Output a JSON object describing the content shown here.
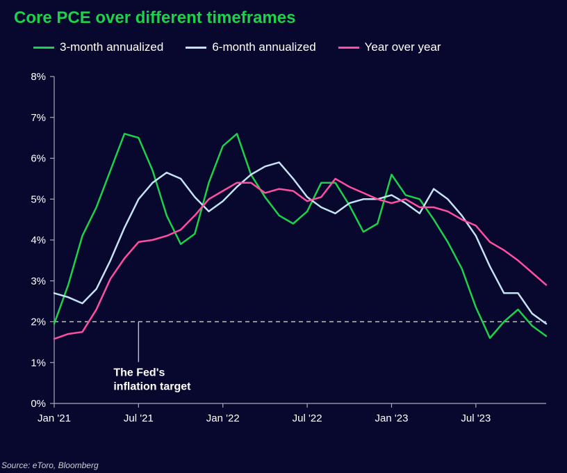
{
  "title": "Core PCE over different timeframes",
  "source": "Source: eToro, Bloomberg",
  "annotation": {
    "lines": [
      "The Fed's",
      "inflation target"
    ],
    "x_index": 6,
    "y_value": 2
  },
  "chart": {
    "type": "line",
    "background_color": "#08082f",
    "title_color": "#1bd24a",
    "title_fontsize": 24,
    "axis_color": "#a8a8b8",
    "text_color": "#ffffff",
    "label_fontsize": 15,
    "tick_fontsize": 15,
    "ylim": [
      0,
      8
    ],
    "ytick_step": 1,
    "y_suffix": "%",
    "x_categories": [
      "Jan '21",
      "Feb '21",
      "Mar '21",
      "Apr '21",
      "May '21",
      "Jun '21",
      "Jul '21",
      "Aug '21",
      "Sep '21",
      "Oct '21",
      "Nov '21",
      "Dec '21",
      "Jan '22",
      "Feb '22",
      "Mar '22",
      "Apr '22",
      "May '22",
      "Jun '22",
      "Jul '22",
      "Aug '22",
      "Sep '22",
      "Oct '22",
      "Nov '22",
      "Dec '22",
      "Jan '23",
      "Feb '23",
      "Mar '23",
      "Apr '23",
      "May '23",
      "Jun '23",
      "Jul '23",
      "Aug '23",
      "Sep '23",
      "Oct '23",
      "Nov '23",
      "Dec '23"
    ],
    "x_tick_indices": [
      0,
      6,
      12,
      18,
      24,
      30
    ],
    "reference_line": {
      "y": 2,
      "color": "#c2c2c9",
      "dash": "6,5",
      "width": 1.4
    },
    "legend": {
      "position": "top-left",
      "fontsize": 17
    },
    "series": [
      {
        "name": "3-month annualized",
        "color": "#1bd24a",
        "line_width": 2.5,
        "values": [
          1.95,
          2.9,
          4.1,
          4.8,
          5.7,
          6.6,
          6.5,
          5.7,
          4.6,
          3.9,
          4.15,
          5.4,
          6.3,
          6.6,
          5.6,
          5.05,
          4.6,
          4.4,
          4.7,
          5.4,
          5.4,
          4.85,
          4.2,
          4.4,
          5.6,
          5.1,
          5.0,
          4.5,
          3.95,
          3.3,
          2.35,
          1.6,
          2.0,
          2.3,
          1.9,
          1.65
        ]
      },
      {
        "name": "6-month annualized",
        "color": "#c4e3f3",
        "line_width": 2.5,
        "values": [
          2.7,
          2.6,
          2.45,
          2.8,
          3.5,
          4.3,
          5.0,
          5.4,
          5.65,
          5.5,
          5.05,
          4.7,
          4.95,
          5.3,
          5.6,
          5.8,
          5.9,
          5.5,
          5.05,
          4.8,
          4.65,
          4.9,
          5.0,
          5.0,
          5.1,
          4.9,
          4.65,
          5.25,
          5.0,
          4.6,
          4.1,
          3.35,
          2.7,
          2.7,
          2.2,
          1.95
        ]
      },
      {
        "name": "Year over year",
        "color": "#ff4fa3",
        "line_width": 2.5,
        "values": [
          1.58,
          1.7,
          1.75,
          2.3,
          3.05,
          3.55,
          3.95,
          4.0,
          4.1,
          4.25,
          4.6,
          5.0,
          5.2,
          5.4,
          5.4,
          5.15,
          5.25,
          5.2,
          4.95,
          5.05,
          5.5,
          5.3,
          5.15,
          5.0,
          4.9,
          5.0,
          4.8,
          4.8,
          4.7,
          4.5,
          4.35,
          3.95,
          3.75,
          3.5,
          3.2,
          2.9
        ]
      }
    ]
  }
}
